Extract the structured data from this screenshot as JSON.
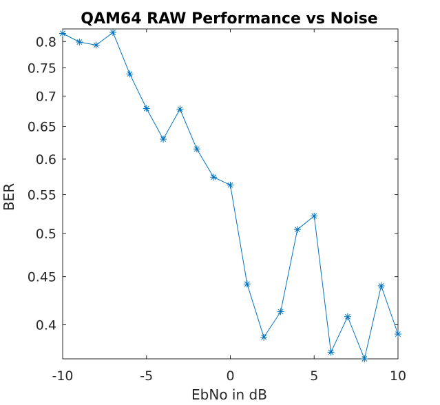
{
  "chart_data": {
    "type": "line",
    "title": "QAM64 RAW Performance vs Noise",
    "xlabel": "EbNo in dB",
    "ylabel": "BER",
    "xlim": [
      -10,
      10
    ],
    "ylim": [
      0.368,
      0.825
    ],
    "yscale": "log",
    "grid": false,
    "box": true,
    "marker": "asterisk",
    "line_color": "#0072BD",
    "axis_color": "#262626",
    "xticks": [
      -10,
      -5,
      0,
      5,
      10
    ],
    "xtick_labels": [
      "-10",
      "-5",
      "0",
      "5",
      "10"
    ],
    "yticks": [
      0.4,
      0.45,
      0.5,
      0.55,
      0.6,
      0.65,
      0.7,
      0.75,
      0.8
    ],
    "ytick_labels": [
      "0.4",
      "0.45",
      "0.5",
      "0.55",
      "0.6",
      "0.65",
      "0.7",
      "0.75",
      "0.8"
    ],
    "series": [
      {
        "x": [
          -10,
          -9,
          -8,
          -7,
          -6,
          -5,
          -4,
          -3,
          -2,
          -1,
          0,
          1,
          2,
          3,
          4,
          5,
          6,
          7,
          8,
          9,
          10
        ],
        "values": [
          0.816,
          0.799,
          0.793,
          0.818,
          0.739,
          0.679,
          0.63,
          0.678,
          0.615,
          0.574,
          0.563,
          0.442,
          0.388,
          0.413,
          0.505,
          0.522,
          0.374,
          0.408,
          0.368,
          0.44,
          0.391
        ]
      }
    ]
  }
}
